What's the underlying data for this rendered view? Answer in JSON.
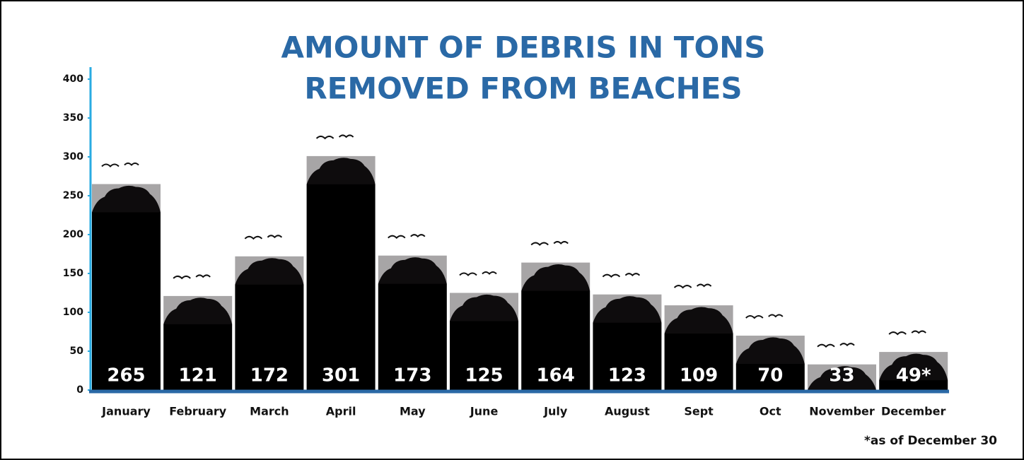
{
  "chart_data": {
    "type": "bar",
    "title": [
      "AMOUNT OF DEBRIS IN TONS",
      "REMOVED FROM BEACHES"
    ],
    "categories": [
      "January",
      "February",
      "March",
      "April",
      "May",
      "June",
      "July",
      "August",
      "Sept",
      "Oct",
      "November",
      "December"
    ],
    "values": [
      265,
      121,
      172,
      301,
      173,
      125,
      164,
      123,
      109,
      70,
      33,
      49
    ],
    "value_labels": [
      "265",
      "121",
      "172",
      "301",
      "173",
      "125",
      "164",
      "123",
      "109",
      "70",
      "33",
      "49*"
    ],
    "color": "#000000",
    "ylim": [
      0,
      400
    ],
    "yticks": [
      0,
      50,
      100,
      150,
      200,
      250,
      300,
      350,
      400
    ],
    "footnote": "*as of December 30"
  }
}
